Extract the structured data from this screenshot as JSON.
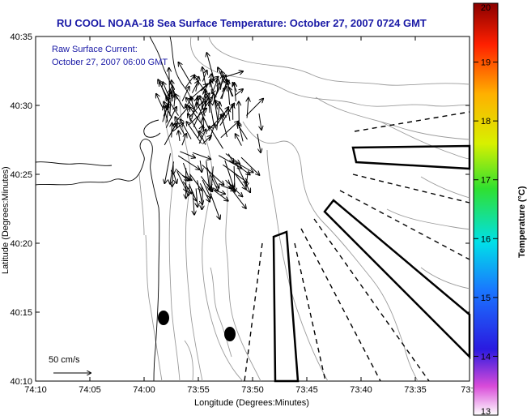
{
  "title": "RU COOL  NOAA-18  Sea Surface Temperature:  October 27, 2007 0724 GMT",
  "annotation": {
    "line1": "Raw Surface Current:",
    "line2": "October 27, 2007 06:00 GMT"
  },
  "scale_label": "50 cm/s",
  "axes": {
    "xlabel": "Longitude (Degrees:Minutes)",
    "ylabel": "Latitude (Degrees:Minutes)",
    "xticks": [
      "74:10",
      "74:05",
      "74:00",
      "73:55",
      "73:50",
      "73:45",
      "73:40",
      "73:35",
      "73:3"
    ],
    "yticks": [
      "40:10",
      "40:15",
      "40:20",
      "40:25",
      "40:30",
      "40:35"
    ]
  },
  "colorbar": {
    "label": "Temperature (°C)",
    "ticks": [
      "13",
      "14",
      "15",
      "16",
      "17",
      "18",
      "19",
      "20"
    ],
    "range": [
      13,
      20
    ]
  },
  "colors": {
    "title_text": "#1a1aa6",
    "bathymetry": "#9a9a9a",
    "coastline": "#000000"
  }
}
